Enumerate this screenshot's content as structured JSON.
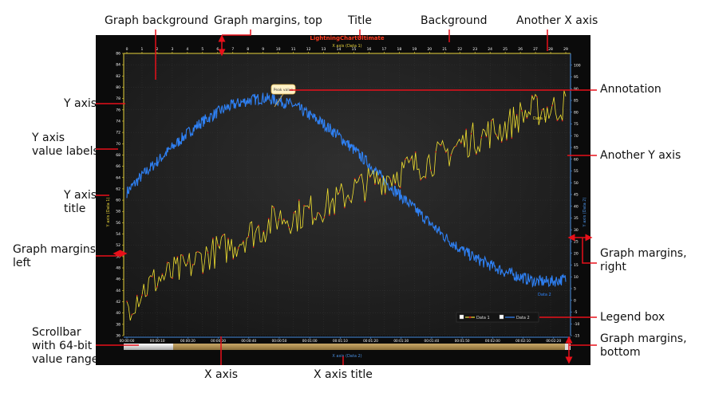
{
  "callouts": {
    "graph_background": "Graph background",
    "graph_margins_top": "Graph margins, top",
    "title": "Title",
    "background": "Background",
    "another_x_axis": "Another X axis",
    "annotation": "Annotation",
    "y_axis": "Y axis",
    "y_axis_value_labels": "Y axis\nvalue labels",
    "another_y_axis": "Another Y axis",
    "y_axis_title": "Y axis\ntitle",
    "graph_margins_left": "Graph margins,\nleft",
    "graph_margins_right": "Graph margins,\nright",
    "legend_box": "Legend box",
    "scrollbar": "Scrollbar\nwith 64-bit\nvalue range",
    "x_axis": "X axis",
    "x_axis_title": "X axis title",
    "graph_margins_bottom": "Graph margins,\nbottom"
  },
  "chart_data": {
    "type": "line",
    "title": "LightningChartUltimate",
    "top_x_axis": {
      "title": "X axis (Data 1)",
      "range": [
        0,
        29
      ],
      "ticks": [
        0,
        1,
        2,
        3,
        4,
        5,
        6,
        7,
        8,
        9,
        10,
        11,
        12,
        13,
        14,
        15,
        16,
        17,
        18,
        19,
        20,
        21,
        22,
        23,
        24,
        25,
        26,
        27,
        28,
        29
      ]
    },
    "bottom_x_axis": {
      "title": "X axis (Data 2)",
      "ticks": [
        "00:00:00",
        "00:00:10",
        "00:00:20",
        "00:00:30",
        "00:00:40",
        "00:00:50",
        "00:01:00",
        "00:01:10",
        "00:01:20",
        "00:01:30",
        "00:01:40",
        "00:01:50",
        "00:02:00",
        "00:02:10",
        "00:02:20"
      ]
    },
    "left_y_axis": {
      "title": "Y axis (Data 1)",
      "range": [
        36,
        86
      ],
      "ticks": [
        36,
        38,
        40,
        42,
        44,
        46,
        48,
        50,
        52,
        54,
        56,
        58,
        60,
        62,
        64,
        66,
        68,
        70,
        72,
        74,
        76,
        78,
        80,
        82,
        84,
        86
      ]
    },
    "right_y_axis": {
      "title": "Y axis (Data 2)",
      "range": [
        -15,
        105
      ],
      "ticks": [
        -15,
        -10,
        -5,
        0,
        5,
        10,
        15,
        20,
        25,
        30,
        35,
        40,
        45,
        50,
        55,
        60,
        65,
        70,
        75,
        80,
        85,
        90,
        95,
        100
      ]
    },
    "series": [
      {
        "name": "Data 1",
        "color": "#f2e130",
        "marker_color": "#d11b1b",
        "axis": "left",
        "x": [
          0,
          1,
          2,
          3,
          4,
          5,
          6,
          7,
          8,
          9,
          10,
          11,
          12,
          13,
          14,
          15,
          16,
          17,
          18,
          19,
          20,
          21,
          22,
          23,
          24,
          25,
          26,
          27,
          28,
          29
        ],
        "y": [
          41,
          44,
          46,
          47,
          48,
          50,
          51,
          52,
          54,
          55,
          57,
          57,
          58,
          59,
          60,
          62,
          63,
          64,
          65,
          66,
          67,
          68,
          70,
          71,
          72,
          73,
          75,
          76,
          76,
          77
        ]
      },
      {
        "name": "Data 2",
        "color": "#2f86ff",
        "axis": "right",
        "x": [
          0,
          1,
          2,
          3,
          4,
          5,
          6,
          7,
          8,
          9,
          10,
          11,
          12,
          13,
          14,
          15,
          16,
          17,
          18,
          19,
          20,
          21,
          22,
          23,
          24,
          25,
          26,
          27,
          28,
          29
        ],
        "y": [
          46,
          53,
          59,
          65,
          71,
          76,
          80,
          83,
          85,
          86,
          85,
          83,
          79,
          75,
          70,
          64,
          58,
          51,
          45,
          39,
          33,
          27,
          22,
          18,
          15,
          12,
          10,
          8,
          8,
          9
        ]
      }
    ],
    "annotation": {
      "text": "Peak value",
      "x": 9.5,
      "y": 86
    },
    "legend": {
      "placement": "bottom-right",
      "entries": [
        "Data 1",
        "Data 2"
      ]
    },
    "grid": true
  },
  "colors": {
    "background": "#0b0b0b",
    "graph_background": "#222222",
    "title": "#ff3b1f",
    "axis_yellow": "#e7d33b",
    "axis_blue": "#4a8fe0",
    "callout_line": "#e8101a",
    "scrollbar_fill": "#a88a4f"
  }
}
